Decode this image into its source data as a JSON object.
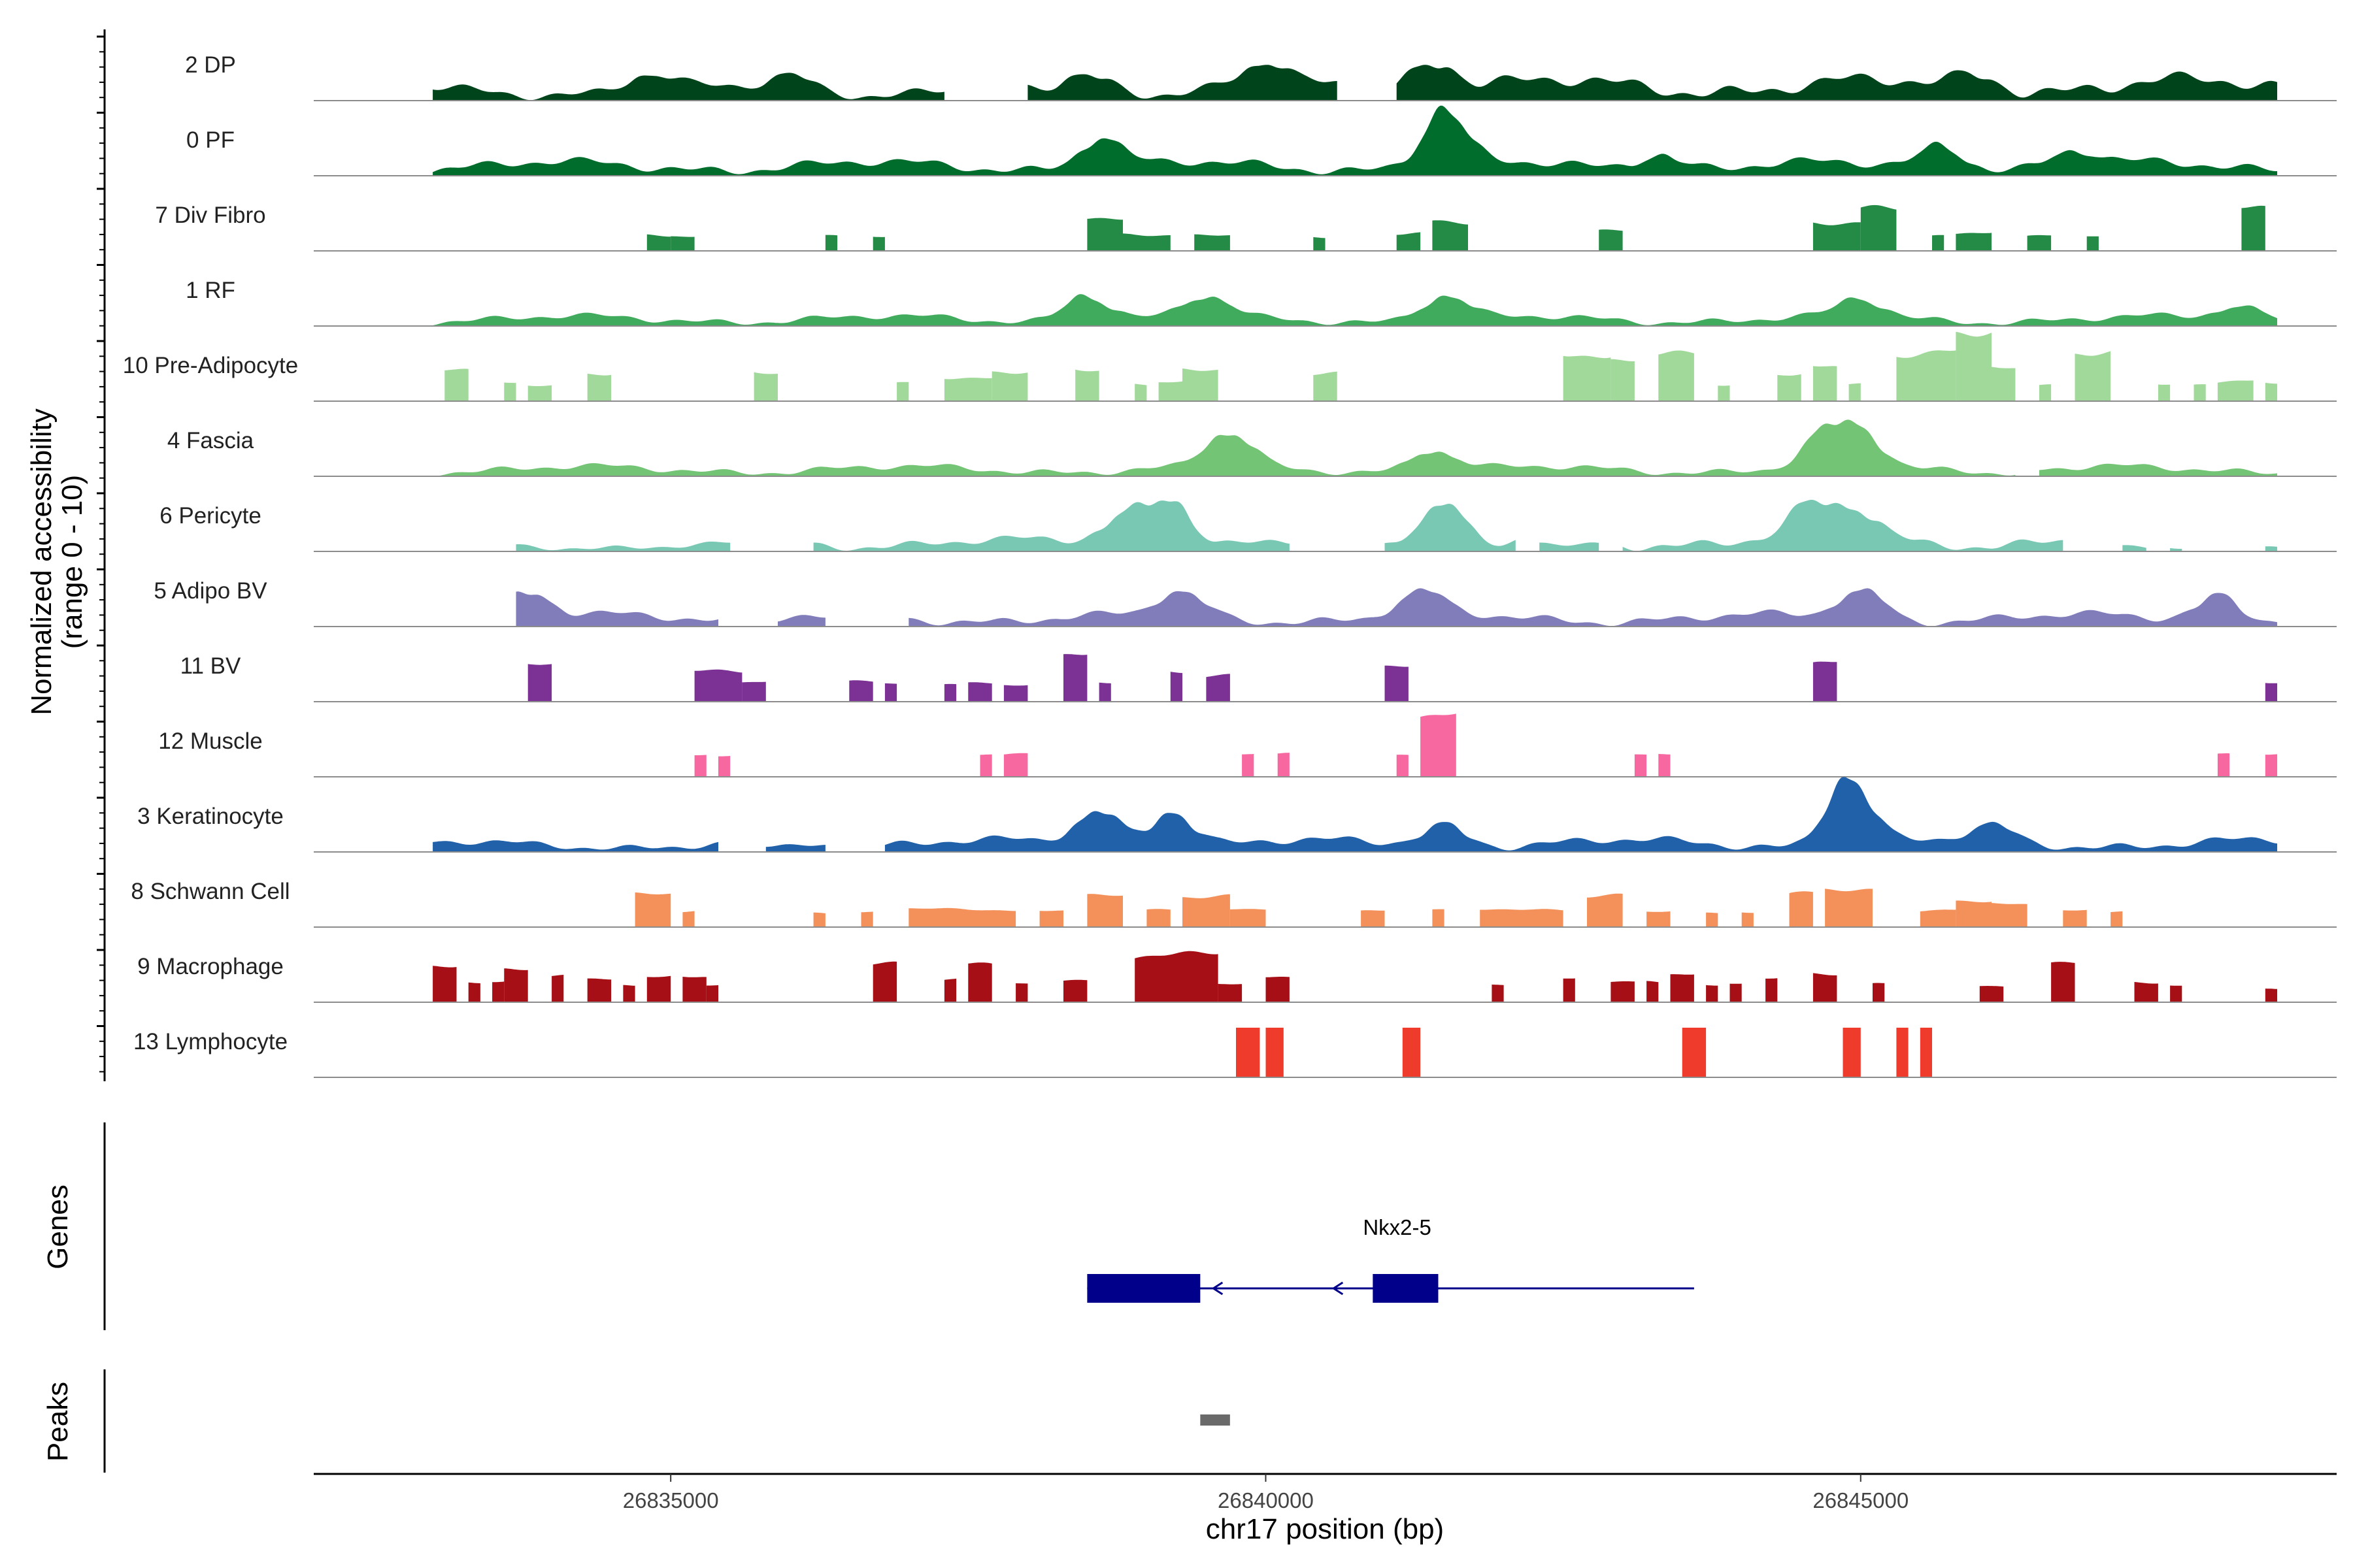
{
  "chart_data": {
    "type": "area",
    "title": "",
    "ylabel_line1": "Normalized accessibility",
    "ylabel_line2": "(range 0 - 10)",
    "xlabel": "chr17 position (bp)",
    "xlim": [
      26832000,
      26849000
    ],
    "x_ticks": [
      {
        "value": 26835000,
        "label": "26835000"
      },
      {
        "value": 26840000,
        "label": "26840000"
      },
      {
        "value": 26845000,
        "label": "26845000"
      }
    ],
    "ylim": [
      0,
      10
    ],
    "series": [
      {
        "name": "2 DP",
        "color": "#00441b",
        "mode": "continuous",
        "amp": 0.18,
        "regions": [
          [
            26833000,
            26837300,
            0.7
          ],
          [
            26838000,
            26840600,
            0.8
          ],
          [
            26841100,
            26848500,
            1.0
          ]
        ],
        "peaks": [
          [
            26834800,
            0.5
          ],
          [
            26836000,
            0.5
          ],
          [
            26838500,
            0.6
          ],
          [
            26840000,
            0.8
          ],
          [
            26841400,
            1.0
          ],
          [
            26846000,
            0.5
          ]
        ]
      },
      {
        "name": "0 PF",
        "color": "#006d2c",
        "mode": "continuous",
        "amp": 0.12,
        "regions": [
          [
            26833000,
            26848500,
            0.7
          ]
        ],
        "peaks": [
          [
            26838600,
            1.0
          ],
          [
            26841500,
            1.8
          ],
          [
            26843300,
            0.6
          ],
          [
            26845700,
            0.8
          ],
          [
            26846800,
            0.5
          ]
        ]
      },
      {
        "name": "7 Div Fibro",
        "color": "#238b45",
        "mode": "blocks",
        "amp": 0.35,
        "regions": [
          [
            26834800,
            26835000,
            0.6
          ],
          [
            26835000,
            26835200,
            0.6
          ],
          [
            26836300,
            26836400,
            0.6
          ],
          [
            26836700,
            26836800,
            0.6
          ],
          [
            26838500,
            26838800,
            1.3
          ],
          [
            26838800,
            26839200,
            0.7
          ],
          [
            26839400,
            26839700,
            0.6
          ],
          [
            26840400,
            26840500,
            0.6
          ],
          [
            26841100,
            26841300,
            0.7
          ],
          [
            26841400,
            26841700,
            1.1
          ],
          [
            26842800,
            26843000,
            0.8
          ],
          [
            26844600,
            26845000,
            1.2
          ],
          [
            26845000,
            26845300,
            1.6
          ],
          [
            26845600,
            26845700,
            0.6
          ],
          [
            26845800,
            26846100,
            0.8
          ],
          [
            26846400,
            26846600,
            0.6
          ],
          [
            26846900,
            26847000,
            0.6
          ],
          [
            26848200,
            26848400,
            1.6
          ]
        ],
        "peaks": []
      },
      {
        "name": "1 RF",
        "color": "#41ab5d",
        "mode": "continuous",
        "amp": 0.12,
        "regions": [
          [
            26833000,
            26848500,
            0.5
          ]
        ],
        "peaks": [
          [
            26838500,
            0.9
          ],
          [
            26839500,
            0.7
          ],
          [
            26841500,
            0.9
          ],
          [
            26845000,
            0.6
          ],
          [
            26848200,
            0.5
          ]
        ]
      },
      {
        "name": "10 Pre-Adipocyte",
        "color": "#a1d99b",
        "mode": "blocks",
        "amp": 0.3,
        "regions": [
          [
            26833100,
            26833300,
            1.2
          ],
          [
            26833600,
            26833700,
            0.7
          ],
          [
            26833800,
            26834000,
            0.7
          ],
          [
            26834300,
            26834500,
            1.1
          ],
          [
            26835700,
            26835900,
            1.2
          ],
          [
            26836900,
            26837000,
            0.7
          ],
          [
            26837300,
            26837700,
            1.0
          ],
          [
            26837700,
            26838000,
            1.2
          ],
          [
            26838400,
            26838600,
            1.2
          ],
          [
            26838900,
            26839000,
            0.7
          ],
          [
            26839100,
            26839300,
            0.8
          ],
          [
            26839300,
            26839600,
            1.2
          ],
          [
            26840400,
            26840600,
            1.2
          ],
          [
            26842500,
            26842900,
            2.0
          ],
          [
            26842900,
            26843100,
            1.6
          ],
          [
            26843300,
            26843600,
            1.8
          ],
          [
            26843800,
            26843900,
            0.7
          ],
          [
            26844300,
            26844500,
            1.1
          ],
          [
            26844600,
            26844800,
            1.3
          ],
          [
            26844900,
            26845000,
            0.7
          ],
          [
            26845300,
            26845800,
            2.0
          ],
          [
            26845800,
            26846100,
            2.6
          ],
          [
            26846100,
            26846300,
            1.3
          ],
          [
            26846500,
            26846600,
            0.7
          ],
          [
            26846800,
            26847100,
            1.9
          ],
          [
            26847500,
            26847600,
            0.7
          ],
          [
            26847800,
            26847900,
            0.7
          ],
          [
            26848000,
            26848300,
            0.8
          ],
          [
            26848400,
            26848500,
            0.7
          ]
        ],
        "peaks": []
      },
      {
        "name": "4 Fascia",
        "color": "#74c476",
        "mode": "continuous",
        "amp": 0.12,
        "regions": [
          [
            26833000,
            26846300,
            0.5
          ],
          [
            26846500,
            26848500,
            0.5
          ]
        ],
        "peaks": [
          [
            26839700,
            1.3
          ],
          [
            26841400,
            0.8
          ],
          [
            26844700,
            1.0
          ],
          [
            26845000,
            1.2
          ]
        ]
      },
      {
        "name": "6 Pericyte",
        "color": "#78c8b4",
        "mode": "continuous",
        "amp": 0.15,
        "regions": [
          [
            26833700,
            26835500,
            0.4
          ],
          [
            26836200,
            26840200,
            0.6
          ],
          [
            26841000,
            26842100,
            0.7
          ],
          [
            26842300,
            26842800,
            0.4
          ],
          [
            26843000,
            26846700,
            0.7
          ],
          [
            26847200,
            26847400,
            0.3
          ],
          [
            26847600,
            26847700,
            0.3
          ],
          [
            26848400,
            26848500,
            0.2
          ]
        ],
        "peaks": [
          [
            26838800,
            0.9
          ],
          [
            26839200,
            1.5
          ],
          [
            26841500,
            1.4
          ],
          [
            26844600,
            1.1
          ],
          [
            26845000,
            1.0
          ]
        ]
      },
      {
        "name": "5 Adipo BV",
        "color": "#807dba",
        "mode": "continuous",
        "amp": 0.15,
        "regions": [
          [
            26833700,
            26835400,
            0.6
          ],
          [
            26835900,
            26836300,
            0.5
          ],
          [
            26837000,
            26848500,
            0.6
          ]
        ],
        "peaks": [
          [
            26833800,
            0.9
          ],
          [
            26839300,
            0.9
          ],
          [
            26841300,
            0.8
          ],
          [
            26845000,
            1.1
          ],
          [
            26848000,
            0.8
          ]
        ]
      },
      {
        "name": "11 BV",
        "color": "#7b3294",
        "mode": "blocks",
        "amp": 0.25,
        "regions": [
          [
            26833800,
            26834000,
            1.5
          ],
          [
            26835200,
            26835600,
            1.3
          ],
          [
            26835600,
            26835800,
            0.8
          ],
          [
            26836500,
            26836700,
            0.8
          ],
          [
            26836800,
            26836900,
            0.8
          ],
          [
            26837300,
            26837400,
            0.7
          ],
          [
            26837500,
            26837700,
            0.7
          ],
          [
            26837800,
            26838000,
            0.7
          ],
          [
            26838300,
            26838500,
            2.0
          ],
          [
            26838600,
            26838700,
            0.7
          ],
          [
            26839200,
            26839300,
            1.2
          ],
          [
            26839500,
            26839700,
            1.1
          ],
          [
            26841000,
            26841200,
            1.5
          ],
          [
            26844600,
            26844800,
            1.5
          ],
          [
            26848400,
            26848500,
            0.8
          ]
        ],
        "peaks": []
      },
      {
        "name": "12 Muscle",
        "color": "#f768a1",
        "mode": "blocks",
        "amp": 0.2,
        "regions": [
          [
            26835200,
            26835300,
            0.9
          ],
          [
            26835400,
            26835500,
            0.9
          ],
          [
            26837600,
            26837700,
            0.9
          ],
          [
            26837800,
            26838000,
            0.9
          ],
          [
            26839800,
            26839900,
            0.9
          ],
          [
            26840100,
            26840200,
            0.9
          ],
          [
            26841100,
            26841200,
            0.9
          ],
          [
            26841300,
            26841600,
            2.4
          ],
          [
            26843100,
            26843200,
            0.9
          ],
          [
            26843300,
            26843400,
            0.9
          ],
          [
            26848000,
            26848100,
            0.9
          ],
          [
            26848400,
            26848500,
            0.9
          ]
        ],
        "peaks": []
      },
      {
        "name": "3 Keratinocyte",
        "color": "#2161a9",
        "mode": "continuous",
        "amp": 0.15,
        "regions": [
          [
            26833000,
            26835400,
            0.5
          ],
          [
            26835800,
            26836300,
            0.4
          ],
          [
            26836800,
            26848500,
            0.6
          ]
        ],
        "peaks": [
          [
            26838600,
            1.2
          ],
          [
            26839200,
            1.2
          ],
          [
            26841500,
            0.8
          ],
          [
            26844900,
            2.2
          ],
          [
            26846100,
            0.5
          ]
        ]
      },
      {
        "name": "8 Schwann Cell",
        "color": "#f4915a",
        "mode": "blocks",
        "amp": 0.25,
        "regions": [
          [
            26834700,
            26835000,
            1.4
          ],
          [
            26835100,
            26835200,
            0.6
          ],
          [
            26836200,
            26836300,
            0.6
          ],
          [
            26836600,
            26836700,
            0.6
          ],
          [
            26837000,
            26837900,
            0.7
          ],
          [
            26838100,
            26838300,
            0.7
          ],
          [
            26838500,
            26838800,
            1.2
          ],
          [
            26839000,
            26839200,
            0.7
          ],
          [
            26839300,
            26839700,
            1.3
          ],
          [
            26839700,
            26840000,
            0.7
          ],
          [
            26840800,
            26841000,
            0.7
          ],
          [
            26841400,
            26841500,
            0.7
          ],
          [
            26841800,
            26842500,
            0.7
          ],
          [
            26842700,
            26843000,
            1.3
          ],
          [
            26843200,
            26843400,
            0.6
          ],
          [
            26843700,
            26843800,
            0.6
          ],
          [
            26844000,
            26844100,
            0.6
          ],
          [
            26844400,
            26844600,
            1.3
          ],
          [
            26844700,
            26845100,
            1.5
          ],
          [
            26845500,
            26845800,
            0.7
          ],
          [
            26845800,
            26846100,
            1.0
          ],
          [
            26846100,
            26846400,
            0.9
          ],
          [
            26846700,
            26846900,
            0.7
          ],
          [
            26847100,
            26847200,
            0.6
          ]
        ],
        "peaks": []
      },
      {
        "name": "9 Macrophage",
        "color": "#a50f15",
        "mode": "blocks",
        "amp": 0.25,
        "regions": [
          [
            26833000,
            26833200,
            1.4
          ],
          [
            26833300,
            26833400,
            0.8
          ],
          [
            26833500,
            26833600,
            0.9
          ],
          [
            26833600,
            26833800,
            1.3
          ],
          [
            26834000,
            26834100,
            1.0
          ],
          [
            26834300,
            26834500,
            1.0
          ],
          [
            26834600,
            26834700,
            0.7
          ],
          [
            26834800,
            26835000,
            1.0
          ],
          [
            26835100,
            26835300,
            1.0
          ],
          [
            26835300,
            26835400,
            0.7
          ],
          [
            26836700,
            26836900,
            1.5
          ],
          [
            26837300,
            26837400,
            1.0
          ],
          [
            26837500,
            26837700,
            1.6
          ],
          [
            26837900,
            26838000,
            0.7
          ],
          [
            26838300,
            26838500,
            0.9
          ],
          [
            26838900,
            26839600,
            1.9
          ],
          [
            26839600,
            26839800,
            0.7
          ],
          [
            26840000,
            26840200,
            1.1
          ],
          [
            26841900,
            26842000,
            0.7
          ],
          [
            26842500,
            26842600,
            1.0
          ],
          [
            26842900,
            26843100,
            0.8
          ],
          [
            26843200,
            26843300,
            0.8
          ],
          [
            26843400,
            26843600,
            1.2
          ],
          [
            26843700,
            26843800,
            0.7
          ],
          [
            26843900,
            26844000,
            0.7
          ],
          [
            26844200,
            26844300,
            1.0
          ],
          [
            26844600,
            26844800,
            1.2
          ],
          [
            26845100,
            26845200,
            0.7
          ],
          [
            26846000,
            26846200,
            0.7
          ],
          [
            26846600,
            26846800,
            1.6
          ],
          [
            26847300,
            26847500,
            0.8
          ],
          [
            26847600,
            26847700,
            0.7
          ],
          [
            26848400,
            26848500,
            0.5
          ]
        ],
        "peaks": []
      },
      {
        "name": "13 Lymphocyte",
        "color": "#ef3b2c",
        "mode": "blocks",
        "amp": 0,
        "regions": [
          [
            26839750,
            26839950,
            2.0
          ],
          [
            26840000,
            26840150,
            2.0
          ],
          [
            26841150,
            26841300,
            2.0
          ],
          [
            26843500,
            26843700,
            2.0
          ],
          [
            26844850,
            26845000,
            2.0
          ],
          [
            26845300,
            26845400,
            2.0
          ],
          [
            26845500,
            26845600,
            2.0
          ]
        ],
        "peaks": []
      }
    ],
    "genes": {
      "track_label": "Genes",
      "name": "Nkx2-5",
      "color": "#00008b",
      "strand": "-",
      "start": 26838500,
      "end": 26843600,
      "exons": [
        [
          26838500,
          26839450
        ],
        [
          26840900,
          26841450
        ]
      ]
    },
    "peaks": {
      "track_label": "Peaks",
      "color": "#6a6a6a",
      "regions": [
        [
          26839450,
          26839700
        ]
      ]
    }
  }
}
